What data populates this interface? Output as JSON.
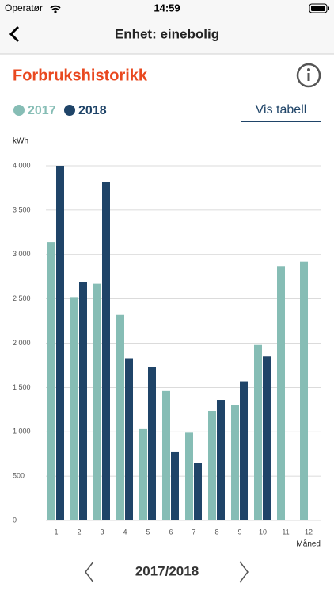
{
  "status_bar": {
    "carrier": "Operatør",
    "time": "14:59"
  },
  "nav": {
    "title": "Enhet: einebolig"
  },
  "header": {
    "title": "Forbrukshistorikk",
    "button": "Vis tabell"
  },
  "period": "2017/2018",
  "chart_data": {
    "type": "bar",
    "y_label": "kWh",
    "x_label": "Måned",
    "categories": [
      "1",
      "2",
      "3",
      "4",
      "5",
      "6",
      "7",
      "8",
      "9",
      "10",
      "11",
      "12"
    ],
    "series": [
      {
        "name": "2017",
        "color": "#86bdb5",
        "values": [
          3140,
          2520,
          2670,
          2320,
          1030,
          1460,
          990,
          1235,
          1300,
          1980,
          2870,
          2920
        ]
      },
      {
        "name": "2018",
        "color": "#1f4468",
        "values": [
          4000,
          2690,
          3820,
          1830,
          1730,
          770,
          650,
          1360,
          1570,
          1850,
          null,
          null
        ]
      }
    ],
    "ylim": [
      0,
      4000
    ],
    "yticks": [
      0,
      500,
      {
        "value": 1000,
        "label": "1 000"
      },
      {
        "value": 1500,
        "label": "1 500"
      },
      {
        "value": 2000,
        "label": "2 000"
      },
      {
        "value": 2500,
        "label": "2 500"
      },
      {
        "value": 3000,
        "label": "3 000"
      },
      {
        "value": 3500,
        "label": "3 500"
      },
      {
        "value": 4000,
        "label": "4 000"
      }
    ],
    "grid": true
  }
}
